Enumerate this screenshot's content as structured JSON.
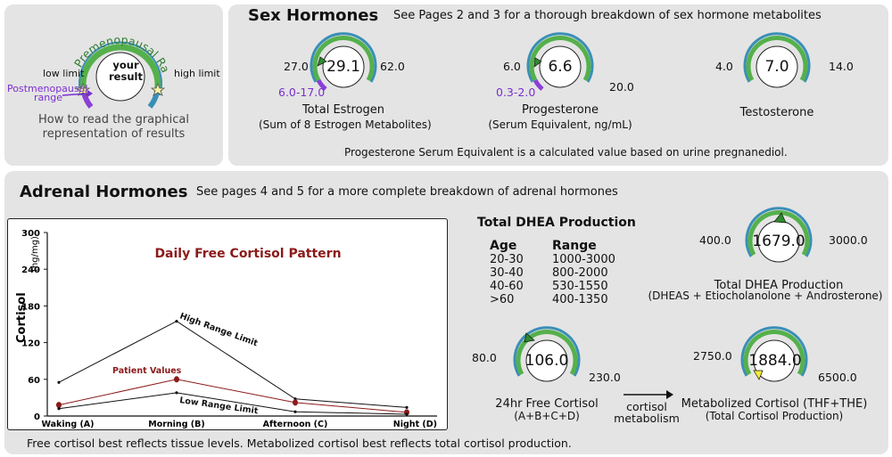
{
  "legend": {
    "arc_label": "Premenopausal Range",
    "low_limit": "low limit",
    "high_limit": "high limit",
    "your_result": "your result",
    "postmeno_line1": "Postmenopausal",
    "postmeno_line2": "range",
    "caption_line1": "How to read the graphical",
    "caption_line2": "representation of results"
  },
  "sex": {
    "title": "Sex Hormones",
    "subtitle": "See Pages 2 and 3 for a thorough breakdown of sex hormone metabolites",
    "note": "Progesterone Serum Equivalent is a calculated value based on urine pregnanediol.",
    "estrogen": {
      "value": "29.1",
      "low": "27.0",
      "high": "62.0",
      "post": "6.0-17.0",
      "name1": "Total Estrogen",
      "name2": "(Sum of 8 Estrogen Metabolites)"
    },
    "progesterone": {
      "value": "6.6",
      "low": "6.0",
      "high": "20.0",
      "post": "0.3-2.0",
      "name1": "Progesterone",
      "name2": "(Serum Equivalent, ng/mL)"
    },
    "testosterone": {
      "value": "7.0",
      "low": "4.0",
      "high": "14.0",
      "name1": "Testosterone"
    }
  },
  "adrenal": {
    "title": "Adrenal Hormones",
    "subtitle": "See pages 4 and 5 for a more complete breakdown of adrenal hormones",
    "footer": "Free cortisol best reflects tissue levels. Metabolized cortisol best reflects total cortisol production.",
    "dhea_table": {
      "title": "Total DHEA Production",
      "col1": "Age",
      "col2": "Range",
      "rows": [
        [
          "20-30",
          "1000-3000"
        ],
        [
          "30-40",
          "800-2000"
        ],
        [
          "40-60",
          "530-1550"
        ],
        [
          ">60",
          "400-1350"
        ]
      ]
    },
    "dhea_gauge": {
      "value": "1679.0",
      "low": "400.0",
      "high": "3000.0",
      "name1": "Total DHEA Production",
      "name2": "(DHEAS + Etiocholanolone + Androsterone)"
    },
    "free_cortisol": {
      "value": "106.0",
      "low": "80.0",
      "high": "230.0",
      "name1": "24hr Free Cortisol",
      "name2": "(A+B+C+D)"
    },
    "metabolism_line1": "cortisol",
    "metabolism_line2": "metabolism",
    "metab_cortisol": {
      "value": "1884.0",
      "low": "2750.0",
      "high": "6500.0",
      "name1": "Metabolized Cortisol (THF+THE)",
      "name2": "(Total Cortisol Production)"
    }
  },
  "chart_data": {
    "type": "line",
    "title": "Daily Free Cortisol Pattern",
    "ylabel": "Cortisol",
    "yunit": "(ng/mg)",
    "categories": [
      "Waking (A)",
      "Morning (B)",
      "Afternoon (C)",
      "Night (D)"
    ],
    "yticks": [
      "0",
      "60",
      "120",
      "180",
      "240",
      "300"
    ],
    "ylim": [
      0,
      300
    ],
    "series": [
      {
        "name": "High Range Limit",
        "values": [
          55,
          155,
          28,
          14
        ],
        "color": "#111111"
      },
      {
        "name": "Patient Values",
        "values": [
          18,
          60,
          22,
          6
        ],
        "color": "#8b1a1a"
      },
      {
        "name": "Low Range Limit",
        "values": [
          12,
          38,
          7,
          3
        ],
        "color": "#111111"
      }
    ],
    "title_color": "#8b1a1a"
  }
}
